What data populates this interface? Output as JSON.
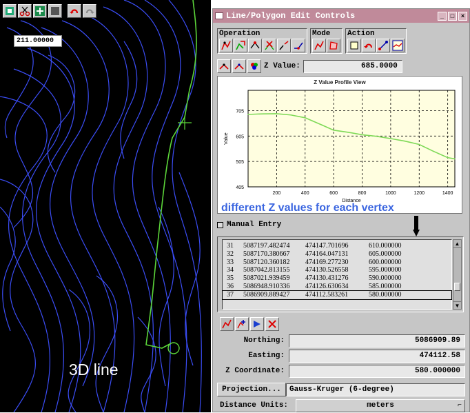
{
  "map": {
    "readout": "211.00000",
    "caption": "3D line",
    "tool_icons": [
      "layers-icon",
      "scissors-icon",
      "pan-icon",
      "stop-icon",
      "undo-icon",
      "redo-icon"
    ]
  },
  "dialog": {
    "title": "Line/Polygon Edit Controls",
    "operation_label": "Operation",
    "mode_label": "Mode",
    "action_label": "Action",
    "z_label": "Z Value:",
    "z_value": "685.0000",
    "annotation": "different Z values for each vertex",
    "manual_entry": "Manual Entry",
    "northing_label": "Northing:",
    "northing_value": "5086909.89",
    "easting_label": "Easting:",
    "easting_value": "474112.58",
    "zcoord_label": "Z Coordinate:",
    "zcoord_value": "580.000000",
    "projection_button": "Projection...",
    "projection_value": "Gauss-Kruger (6-degree)",
    "units_label": "Distance Units:",
    "units_value": "meters"
  },
  "vertex_list": [
    {
      "id": "31",
      "northing": "5087197.482474",
      "easting": "474147.701696",
      "z": "610.000000"
    },
    {
      "id": "32",
      "northing": "5087170.380667",
      "easting": "474164.047131",
      "z": "605.000000"
    },
    {
      "id": "33",
      "northing": "5087120.360182",
      "easting": "474169.277230",
      "z": "600.000000"
    },
    {
      "id": "34",
      "northing": "5087042.813155",
      "easting": "474130.526558",
      "z": "595.000000"
    },
    {
      "id": "35",
      "northing": "5087021.939459",
      "easting": "474130.431276",
      "z": "590.000000"
    },
    {
      "id": "36",
      "northing": "5086948.910336",
      "easting": "474126.630634",
      "z": "585.000000"
    },
    {
      "id": "37",
      "northing": "5086909.889427",
      "easting": "474112.583261",
      "z": "580.000000"
    }
  ],
  "selected_vertex": "37",
  "chart_data": {
    "type": "line",
    "title": "Z Value Profile View",
    "xlabel": "Distance",
    "ylabel": "Value",
    "xlim": [
      0,
      1450
    ],
    "ylim": [
      405,
      785
    ],
    "xticks": [
      "200",
      "400",
      "600",
      "800",
      "1000",
      "1200",
      "1400"
    ],
    "yticks": [
      "405",
      "505",
      "605",
      "705"
    ],
    "grid": true,
    "series": [
      {
        "color": "#7ed957",
        "x": [
          0,
          80,
          200,
          300,
          400,
          450,
          520,
          600,
          700,
          800,
          900,
          1000,
          1100,
          1200,
          1300,
          1400,
          1450
        ],
        "y": [
          690,
          692,
          693,
          688,
          677,
          665,
          648,
          628,
          620,
          610,
          604,
          595,
          585,
          572,
          545,
          520,
          515
        ]
      }
    ],
    "plot_bg": "#fffee0"
  }
}
